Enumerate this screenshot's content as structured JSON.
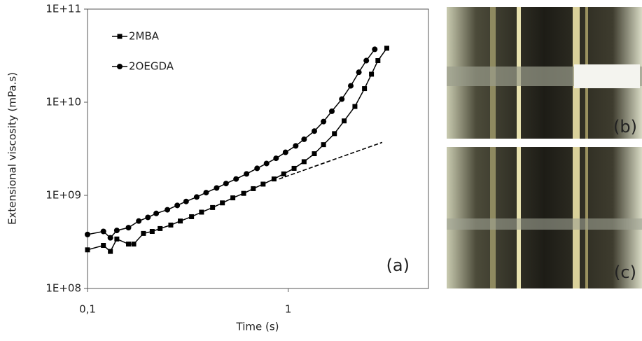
{
  "chart_data": {
    "type": "line",
    "x_label": "Time (s)",
    "y_label": "Extensional viscosity (mPa.s)",
    "xlog": true,
    "ylog": true,
    "xlim": [
      0.1,
      5
    ],
    "ylim": [
      100000000,
      100000000000
    ],
    "xticks": [
      {
        "value": 0.1,
        "label": "0,1"
      },
      1
    ],
    "yticks": [
      {
        "value": 100000000,
        "label": "1E+08"
      },
      {
        "value": 1000000000,
        "label": "1E+09"
      },
      {
        "value": 10000000000,
        "label": "1E+10"
      },
      {
        "value": 100000000000,
        "label": "1E+11"
      }
    ],
    "legend": "top-left",
    "series": [
      {
        "name": "2MBA",
        "color": "#000000",
        "marker": "square",
        "x": [
          0.1,
          0.12,
          0.13,
          0.14,
          0.16,
          0.17,
          0.19,
          0.21,
          0.23,
          0.26,
          0.29,
          0.33,
          0.37,
          0.42,
          0.47,
          0.53,
          0.6,
          0.67,
          0.75,
          0.85,
          0.95,
          1.07,
          1.2,
          1.35,
          1.5,
          1.7,
          1.9,
          2.15,
          2.4,
          2.6,
          2.8,
          3.1
        ],
        "values": [
          260000000,
          290000000,
          250000000,
          340000000,
          300000000,
          300000000,
          390000000,
          410000000,
          440000000,
          480000000,
          530000000,
          590000000,
          660000000,
          740000000,
          830000000,
          940000000,
          1050000000,
          1180000000,
          1320000000,
          1500000000,
          1700000000,
          1950000000,
          2300000000,
          2800000000,
          3500000000,
          4600000000,
          6300000000,
          9000000000,
          14000000000,
          20000000000,
          28000000000,
          38000000000
        ]
      },
      {
        "name": "2OEGDA",
        "color": "#000000",
        "marker": "circle",
        "x": [
          0.1,
          0.12,
          0.13,
          0.14,
          0.16,
          0.18,
          0.2,
          0.22,
          0.25,
          0.28,
          0.31,
          0.35,
          0.39,
          0.44,
          0.49,
          0.55,
          0.62,
          0.7,
          0.78,
          0.87,
          0.97,
          1.09,
          1.2,
          1.35,
          1.5,
          1.65,
          1.85,
          2.05,
          2.25,
          2.45,
          2.7
        ],
        "values": [
          380000000,
          410000000,
          350000000,
          420000000,
          450000000,
          530000000,
          580000000,
          640000000,
          700000000,
          780000000,
          860000000,
          960000000,
          1070000000,
          1200000000,
          1340000000,
          1500000000,
          1700000000,
          1950000000,
          2200000000,
          2500000000,
          2900000000,
          3400000000,
          4000000000,
          4900000000,
          6200000000,
          8000000000,
          10800000000,
          15000000000,
          21000000000,
          28000000000,
          37000000000
        ]
      }
    ],
    "trend_line": {
      "x": [
        0.9,
        2.94
      ],
      "values": [
        1500000000,
        3700000000
      ],
      "style": "dashed"
    },
    "annotation": "(a)"
  },
  "panels": [
    {
      "label": "(b)"
    },
    {
      "label": "(c)"
    }
  ]
}
